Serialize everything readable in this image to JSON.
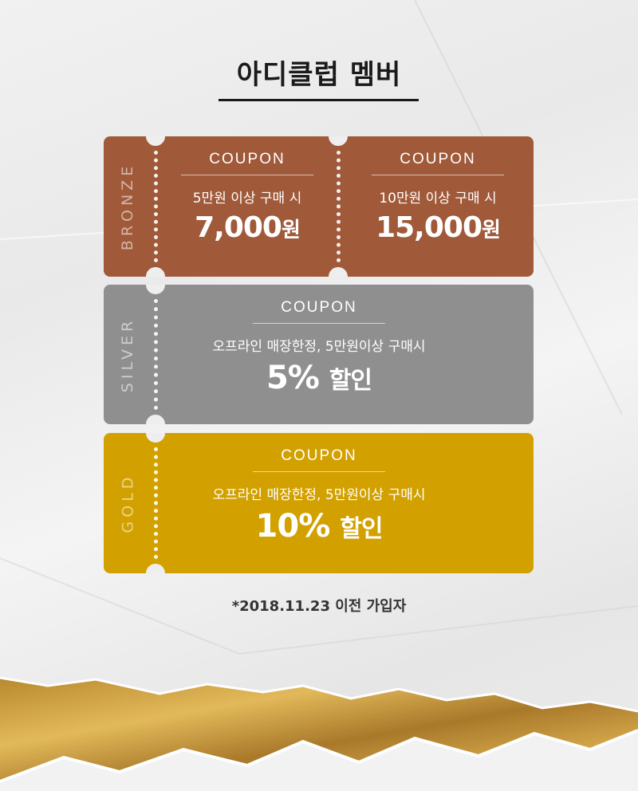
{
  "title": "아디클럽 멤버",
  "colors": {
    "bronze": "#a05a3a",
    "silver": "#8f8f8f",
    "gold": "#d2a100"
  },
  "bronze": {
    "tier": "BRONZE",
    "coupons": [
      {
        "head": "COUPON",
        "condition": "5만원 이상 구매 시",
        "amount": "7,000",
        "unit": "원"
      },
      {
        "head": "COUPON",
        "condition": "10만원 이상 구매 시",
        "amount": "15,000",
        "unit": "원"
      }
    ]
  },
  "silver": {
    "tier": "SILVER",
    "coupon": {
      "head": "COUPON",
      "condition": "오프라인 매장한정, 5만원이상 구매시",
      "amount": "5%",
      "unit": "할인"
    }
  },
  "gold": {
    "tier": "GOLD",
    "coupon": {
      "head": "COUPON",
      "condition": "오프라인 매장한정, 5만원이상 구매시",
      "amount": "10%",
      "unit": "할인"
    }
  },
  "footnote": "*2018.11.23 이전 가입자"
}
